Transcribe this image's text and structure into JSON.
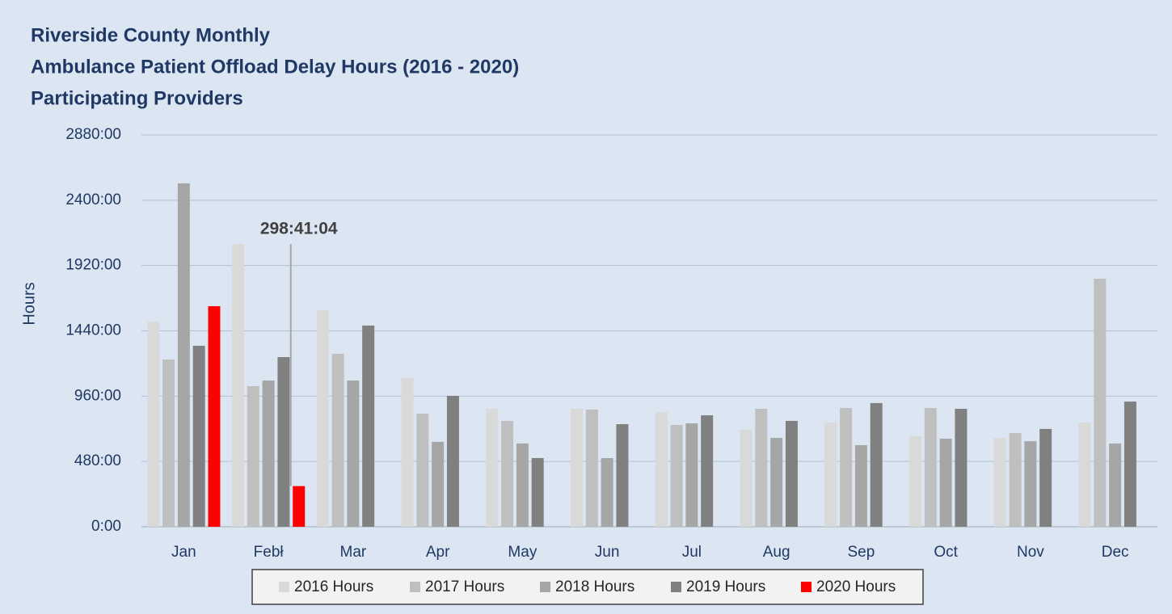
{
  "chart_data": {
    "type": "bar",
    "title": [
      "Riverside County Monthly",
      "Ambulance Patient Offload Delay Hours (2016 - 2020)",
      "Participating Providers"
    ],
    "y_label": "Hours",
    "categories": [
      "Jan",
      "Febł",
      "Mar",
      "Apr",
      "May",
      "Jun",
      "Jul",
      "Aug",
      "Sep",
      "Oct",
      "Nov",
      "Dec"
    ],
    "series": [
      {
        "name": "2016 Hours",
        "color": "#d9d9d9",
        "values": [
          1508,
          2078,
          1591,
          1093,
          867,
          867,
          843,
          713,
          766,
          665,
          653,
          766
        ]
      },
      {
        "name": "2017 Hours",
        "color": "#bfbfbf",
        "values": [
          1229,
          1033,
          1271,
          831,
          778,
          861,
          748,
          867,
          873,
          873,
          689,
          1823
        ]
      },
      {
        "name": "2018 Hours",
        "color": "#a6a6a6",
        "values": [
          2524,
          1075,
          1075,
          624,
          612,
          505,
          760,
          653,
          600,
          647,
          629,
          612
        ]
      },
      {
        "name": "2019 Hours",
        "color": "#808080",
        "values": [
          1330,
          1247,
          1479,
          962,
          505,
          754,
          819,
          778,
          909,
          867,
          719,
          920
        ]
      },
      {
        "name": "2020 Hours",
        "color": "#ff0000",
        "values": [
          1621,
          298.68,
          null,
          null,
          null,
          null,
          null,
          null,
          null,
          null,
          null,
          null
        ]
      }
    ],
    "annotation": {
      "text": "298:41:04",
      "series": 4,
      "index": 1
    },
    "ylim": [
      0,
      2880
    ],
    "yticks": [
      {
        "value": 0,
        "label": "0:00"
      },
      {
        "value": 480,
        "label": "480:00"
      },
      {
        "value": 960,
        "label": "960:00"
      },
      {
        "value": 1440,
        "label": "1440:00"
      },
      {
        "value": 1920,
        "label": "1920:00"
      },
      {
        "value": 2400,
        "label": "2400:00"
      },
      {
        "value": 2880,
        "label": "2880:00"
      }
    ],
    "grid": true,
    "legend": "bottom"
  }
}
